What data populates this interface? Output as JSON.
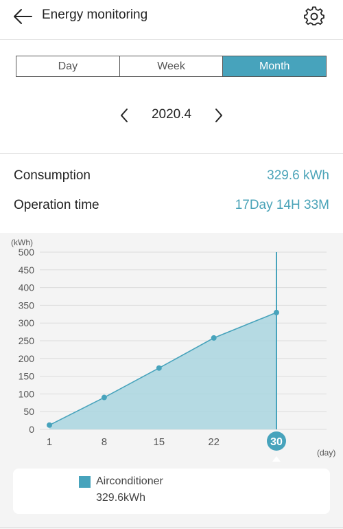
{
  "header": {
    "title": "Energy monitoring",
    "back_icon": "arrow-left-icon",
    "settings_icon": "gear-icon"
  },
  "tabs": [
    {
      "label": "Day",
      "active": false
    },
    {
      "label": "Week",
      "active": false
    },
    {
      "label": "Month",
      "active": true
    }
  ],
  "period": {
    "label": "2020.4",
    "prev_icon": "chevron-left-icon",
    "next_icon": "chevron-right-icon"
  },
  "stats": {
    "consumption_label": "Consumption",
    "consumption_value": "329.6 kWh",
    "operation_label": "Operation time",
    "operation_value": "17Day 14H 33M"
  },
  "colors": {
    "accent": "#47a3bc",
    "fill": "#a9d5df",
    "text_accent": "#4aa3b8"
  },
  "chart_data": {
    "type": "area",
    "ylabel": "(kWh)",
    "xlabel": "(day)",
    "ylim": [
      0,
      500
    ],
    "yticks": [
      0,
      50,
      100,
      150,
      200,
      250,
      300,
      350,
      400,
      450,
      500
    ],
    "xlim": [
      1,
      30
    ],
    "xticks": [
      1,
      8,
      15,
      22,
      30
    ],
    "selected_x": 30,
    "series": [
      {
        "x": [
          1,
          8,
          15,
          22,
          30
        ],
        "values": [
          12,
          90,
          173,
          258,
          329.6
        ]
      }
    ],
    "grid": true
  },
  "legend": {
    "name": "Airconditioner",
    "value": "329.6kWh"
  }
}
